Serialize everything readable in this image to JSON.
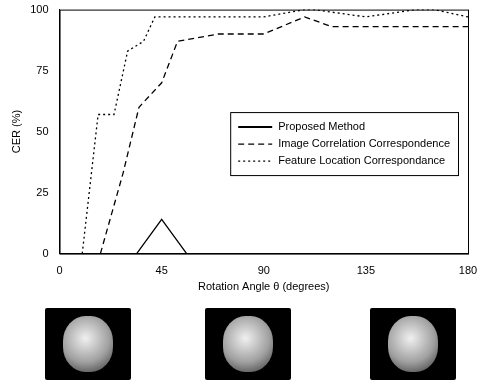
{
  "chart_data": {
    "type": "line",
    "x_label": "Rotation Angle θ (degrees)",
    "y_label": "CER (%)",
    "xlim": [
      0,
      180
    ],
    "xticks": [
      0,
      45,
      90,
      135,
      180
    ],
    "ylim": [
      0,
      100
    ],
    "yticks": [
      0,
      25,
      50,
      75,
      100
    ],
    "grid": false,
    "legend": "center",
    "series": [
      {
        "name": "Proposed Method",
        "color": "#000000",
        "line_style": "solid",
        "x": [
          0,
          34,
          45,
          56,
          180
        ],
        "values": [
          0,
          0,
          14,
          0,
          0
        ]
      },
      {
        "name": "Image Correlation Correspondence",
        "color": "#000000",
        "line_style": "dashed",
        "x": [
          18,
          28,
          35,
          45,
          52,
          70,
          90,
          108,
          120,
          180
        ],
        "values": [
          0,
          33,
          60,
          70,
          87,
          90,
          90,
          97,
          93,
          93
        ]
      },
      {
        "name": "Feature Location Correspondance",
        "color": "#000000",
        "line_style": "dotted",
        "x": [
          10,
          17,
          24,
          30,
          37,
          42,
          50,
          90,
          108,
          112,
          135,
          157,
          165,
          180
        ],
        "values": [
          0,
          57,
          57,
          83,
          87,
          97,
          97,
          97,
          100,
          100,
          97,
          100,
          100,
          97
        ]
      }
    ]
  }
}
